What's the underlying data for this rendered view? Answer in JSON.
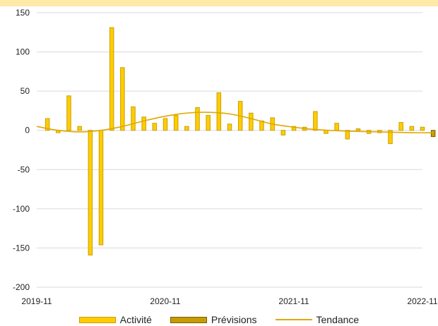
{
  "chart_data": {
    "type": "bar",
    "title": "",
    "xlabel": "",
    "ylabel": "",
    "ylim": [
      -200,
      150
    ],
    "yticks": [
      150,
      100,
      50,
      0,
      -50,
      -100,
      -150,
      -200
    ],
    "x_tick_labels": [
      "2019-11",
      "2020-11",
      "2021-11",
      "2022-11"
    ],
    "x_range": [
      "2019-11",
      "2022-11"
    ],
    "grid": "horizontal",
    "legend_position": "bottom",
    "colors": {
      "activity_fill": "#FFCC00",
      "activity_border": "#C9A000",
      "forecast_fill": "#C89B00",
      "forecast_border": "#7A5E00",
      "trend": "#E0A800",
      "grid": "#D9D9D9",
      "band": "#FFE9A8"
    },
    "series": [
      {
        "name": "Activité",
        "kind": "bar",
        "points": [
          {
            "x": "2019-12",
            "y": 15
          },
          {
            "x": "2020-01",
            "y": -3
          },
          {
            "x": "2020-02",
            "y": 44
          },
          {
            "x": "2020-03",
            "y": 5
          },
          {
            "x": "2020-04",
            "y": -159
          },
          {
            "x": "2020-05",
            "y": -146
          },
          {
            "x": "2020-06",
            "y": 131
          },
          {
            "x": "2020-07",
            "y": 80
          },
          {
            "x": "2020-08",
            "y": 30
          },
          {
            "x": "2020-09",
            "y": 17
          },
          {
            "x": "2020-10",
            "y": 9
          },
          {
            "x": "2020-11",
            "y": 15
          },
          {
            "x": "2020-12",
            "y": 19
          },
          {
            "x": "2021-01",
            "y": 5
          },
          {
            "x": "2021-02",
            "y": 29
          },
          {
            "x": "2021-03",
            "y": 19
          },
          {
            "x": "2021-04",
            "y": 48
          },
          {
            "x": "2021-05",
            "y": 8
          },
          {
            "x": "2021-06",
            "y": 37
          },
          {
            "x": "2021-07",
            "y": 22
          },
          {
            "x": "2021-08",
            "y": 12
          },
          {
            "x": "2021-09",
            "y": 16
          },
          {
            "x": "2021-10",
            "y": -6
          },
          {
            "x": "2021-11",
            "y": 5
          },
          {
            "x": "2021-12",
            "y": 4
          },
          {
            "x": "2022-01",
            "y": 24
          },
          {
            "x": "2022-02",
            "y": -4
          },
          {
            "x": "2022-03",
            "y": 9
          },
          {
            "x": "2022-04",
            "y": -11
          },
          {
            "x": "2022-05",
            "y": 2
          },
          {
            "x": "2022-06",
            "y": -4
          },
          {
            "x": "2022-07",
            "y": -3
          },
          {
            "x": "2022-08",
            "y": -17
          },
          {
            "x": "2022-09",
            "y": 10
          },
          {
            "x": "2022-10",
            "y": 5
          },
          {
            "x": "2022-11",
            "y": 4
          }
        ]
      },
      {
        "name": "Prévisions",
        "kind": "bar",
        "points": [
          {
            "x": "2022-12",
            "y": -8
          }
        ]
      },
      {
        "name": "Tendance",
        "kind": "line",
        "points": [
          {
            "x": "2019-11",
            "y": 5
          },
          {
            "x": "2020-01",
            "y": 0
          },
          {
            "x": "2020-03",
            "y": -2
          },
          {
            "x": "2020-05",
            "y": 0
          },
          {
            "x": "2020-07",
            "y": 5
          },
          {
            "x": "2020-09",
            "y": 12
          },
          {
            "x": "2020-11",
            "y": 18
          },
          {
            "x": "2021-01",
            "y": 22
          },
          {
            "x": "2021-03",
            "y": 23
          },
          {
            "x": "2021-05",
            "y": 21
          },
          {
            "x": "2021-07",
            "y": 15
          },
          {
            "x": "2021-09",
            "y": 8
          },
          {
            "x": "2021-11",
            "y": 4
          },
          {
            "x": "2022-01",
            "y": 1
          },
          {
            "x": "2022-04",
            "y": -1
          },
          {
            "x": "2022-07",
            "y": -2
          },
          {
            "x": "2022-10",
            "y": -3
          },
          {
            "x": "2022-12",
            "y": -3
          }
        ]
      }
    ]
  }
}
